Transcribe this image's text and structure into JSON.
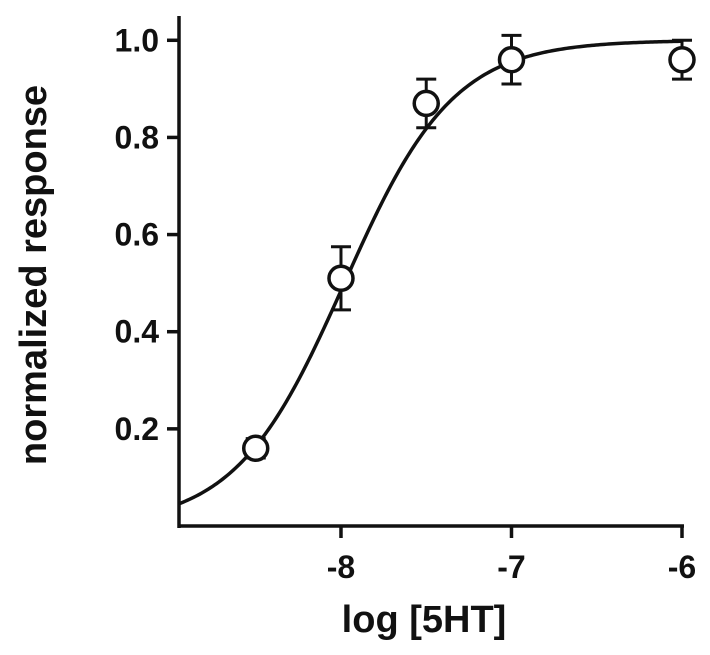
{
  "chart_data": {
    "type": "scatter",
    "xlabel": "log [5HT]",
    "ylabel": "normalized response",
    "xlim": [
      -8.95,
      -6
    ],
    "ylim": [
      0,
      1.05
    ],
    "x_ticks": [
      -8,
      -7,
      -6
    ],
    "x_tick_labels": [
      "-8",
      "-7",
      "-6"
    ],
    "y_ticks": [
      0.2,
      0.4,
      0.6,
      0.8,
      1.0
    ],
    "y_tick_labels": [
      "0.2",
      "0.4",
      "0.6",
      "0.8",
      "1.0"
    ],
    "points": [
      {
        "x": -8.5,
        "y": 0.16,
        "err": 0.02
      },
      {
        "x": -8.0,
        "y": 0.51,
        "err": 0.065
      },
      {
        "x": -7.5,
        "y": 0.87,
        "err": 0.05
      },
      {
        "x": -7.0,
        "y": 0.96,
        "err": 0.05
      },
      {
        "x": -6.0,
        "y": 0.96,
        "err": 0.04
      }
    ],
    "fit": {
      "model": "sigmoid",
      "bottom": 0,
      "top": 1.0,
      "log_ec50": -7.98,
      "hill": 1.36
    },
    "grid": false,
    "marker": "open-circle",
    "color": "#111111"
  }
}
